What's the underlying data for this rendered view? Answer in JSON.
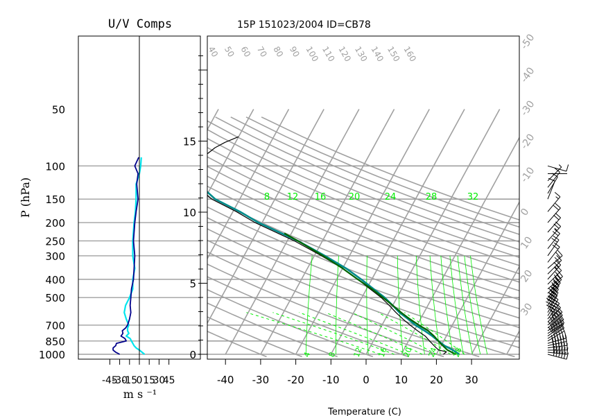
{
  "chart_data": [
    {
      "panel": "uv",
      "type": "line",
      "title": "U/V Comps",
      "xlabel": "m s ⁻¹",
      "ylabel": "P (hPa)",
      "xlim": [
        -50,
        50
      ],
      "pressure_ticks": [
        50,
        100,
        150,
        200,
        250,
        300,
        400,
        500,
        700,
        850,
        1000
      ],
      "x_ticks": [
        "-45",
        "-30",
        "-15",
        "0",
        "15",
        "30",
        "45"
      ],
      "colors": {
        "u": "#00008b",
        "v": "#00e5ee",
        "accent": "#00ee00",
        "grid": "#a0a0a0"
      },
      "u_series": {
        "p": [
          1000,
          975,
          950,
          925,
          900,
          875,
          850,
          825,
          800,
          775,
          750,
          725,
          700,
          650,
          600,
          550,
          500,
          450,
          400,
          350,
          300,
          250,
          200,
          175,
          150,
          125,
          110,
          100,
          90
        ],
        "values": [
          -30,
          -36,
          -40,
          -40,
          -36,
          -35,
          -20,
          -22,
          -28,
          -25,
          -26,
          -21,
          -18,
          -15,
          -13,
          -14,
          -13,
          -12,
          -9,
          -8,
          -7,
          -9,
          -7,
          -5,
          -2,
          -4,
          -2,
          -7,
          -1
        ]
      },
      "v_series": {
        "p": [
          1000,
          975,
          950,
          925,
          900,
          875,
          850,
          825,
          800,
          775,
          750,
          725,
          700,
          650,
          600,
          550,
          500,
          450,
          400,
          350,
          300,
          250,
          200,
          175,
          150,
          125,
          110,
          100,
          90
        ],
        "values": [
          8,
          4,
          0,
          -5,
          -8,
          -10,
          -12,
          -14,
          -20,
          -16,
          -18,
          -18,
          -16,
          -20,
          -23,
          -21,
          -15,
          -10,
          -10,
          -7,
          -10,
          -10,
          -8,
          -6,
          -5,
          -5,
          0,
          2,
          3
        ]
      }
    },
    {
      "panel": "skewt",
      "type": "line",
      "title": "15P 151023/2004 ID=CB78",
      "xlabel": "Temperature (C)",
      "ylabel": "",
      "xlim": [
        -45,
        42
      ],
      "x_ticks": [
        -40,
        -30,
        -20,
        -10,
        0,
        10,
        20,
        30
      ],
      "height_km_ticks": [
        0,
        5,
        10,
        15
      ],
      "isotherm_labels": [
        "-50",
        "-40",
        "-30",
        "-20",
        "-10",
        "0",
        "10",
        "20",
        "30"
      ],
      "dry_adiabat_labels": [
        "40",
        "50",
        "60",
        "70",
        "80",
        "90",
        "100",
        "110",
        "120",
        "130",
        "140",
        "150",
        "160"
      ],
      "mixing_ratio_labels": [
        "8",
        "12",
        "16",
        "20",
        "24",
        "28",
        "32"
      ],
      "moist_adiabat_labels": [
        "4",
        "8",
        "12",
        "16",
        "20",
        "24",
        "28"
      ],
      "colors": {
        "grid": "#a0a0a0",
        "temperature": "#008b8b",
        "dewpoint": "#000000",
        "parcel": "#006400",
        "moist": "#00ee00"
      },
      "temperature": {
        "p": [
          1000,
          950,
          900,
          850,
          800,
          750,
          700,
          650,
          600,
          550,
          500,
          450,
          400,
          350,
          300,
          250,
          200,
          175,
          150,
          125,
          110,
          100,
          95
        ],
        "values": [
          26.5,
          24,
          21,
          18.5,
          16,
          13,
          9.5,
          6.5,
          3,
          0,
          -3.5,
          -8,
          -13,
          -19,
          -27,
          -37,
          -51,
          -58,
          -67,
          -74,
          -78,
          -79,
          -76
        ]
      },
      "dewpoint": {
        "p": [
          1000,
          970,
          950,
          925,
          900,
          875,
          850,
          800,
          750,
          700,
          650,
          600,
          550,
          500,
          450,
          400,
          350,
          300,
          250,
          200,
          175,
          150,
          125,
          110,
          100,
          95,
          90,
          85,
          80,
          75,
          70
        ],
        "values": [
          22,
          22.5,
          20,
          19,
          18,
          17,
          16,
          14,
          11,
          8,
          5,
          2,
          -1,
          -4.5,
          -9,
          -14,
          -20,
          -28,
          -38,
          -52,
          -59,
          -68,
          -75,
          -79,
          -80,
          -77,
          -77,
          -76,
          -75,
          -73,
          -70
        ]
      },
      "parcel": {
        "p": [
          1000,
          950,
          900,
          850,
          800,
          750,
          700,
          650,
          600,
          550,
          500,
          450,
          400,
          350,
          300,
          250,
          228
        ],
        "values": [
          25.5,
          22.5,
          20.5,
          18.5,
          16.5,
          14,
          10.5,
          7,
          3.5,
          0,
          -4,
          -8.5,
          -14,
          -20,
          -27.5,
          -37,
          -42
        ]
      },
      "winds": {
        "p": [
          1000,
          975,
          950,
          925,
          900,
          875,
          850,
          825,
          800,
          775,
          750,
          725,
          700,
          675,
          650,
          625,
          600,
          575,
          550,
          525,
          500,
          475,
          450,
          425,
          400,
          375,
          350,
          325,
          300,
          275,
          250,
          225,
          200,
          175,
          150,
          140,
          130,
          120,
          110,
          100
        ],
        "u": [
          -30,
          -36,
          -40,
          -40,
          -36,
          -35,
          -20,
          -22,
          -28,
          -25,
          -26,
          -21,
          -18,
          -16,
          -15,
          -14,
          -13,
          -14,
          -14,
          -13,
          -13,
          -12,
          -12,
          -10,
          -9,
          -8,
          -8,
          -7,
          -7,
          -8,
          -9,
          -8,
          -7,
          -5,
          -2,
          -3,
          -4,
          -3,
          -2,
          -7
        ],
        "v": [
          8,
          4,
          0,
          -5,
          -8,
          -10,
          -12,
          -14,
          -20,
          -16,
          -18,
          -18,
          -16,
          -18,
          -20,
          -22,
          -23,
          -22,
          -21,
          -18,
          -15,
          -12,
          -10,
          -10,
          -10,
          -8,
          -7,
          -9,
          -10,
          -10,
          -10,
          -9,
          -8,
          -6,
          -5,
          -5,
          -5,
          -3,
          0,
          2
        ]
      }
    }
  ]
}
